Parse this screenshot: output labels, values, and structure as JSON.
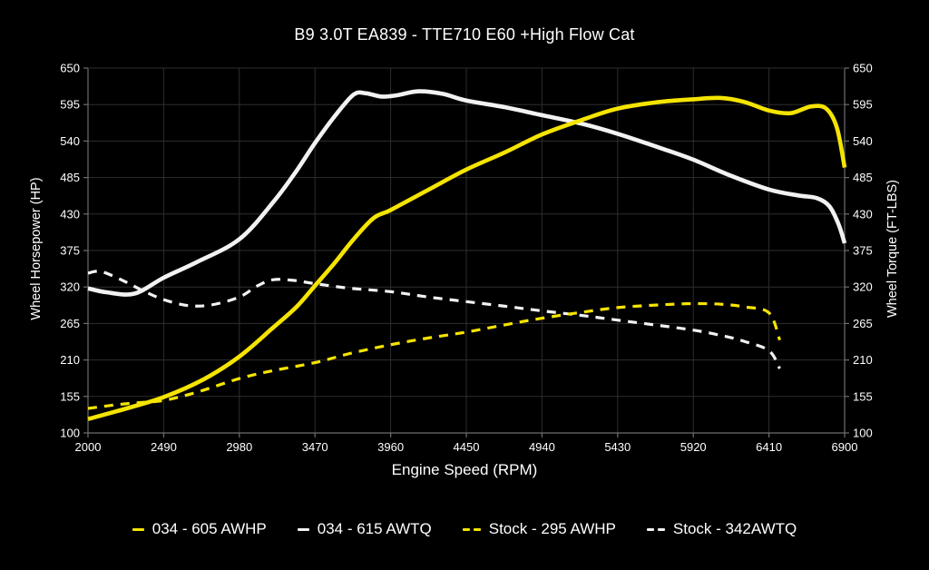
{
  "title": "B9 3.0T EA839 - TTE710 E60 +High Flow Cat",
  "colors": {
    "background": "#000000",
    "text": "#ffffff",
    "gridline": "#2e2e2e",
    "axis_line": "#6e6e6e",
    "yellow_accent": "#f5e400",
    "white_accent": "#f2f2f2"
  },
  "axes": {
    "x": {
      "label": "Engine Speed (RPM)",
      "min": 2000,
      "max": 6900,
      "ticks": [
        2000,
        2490,
        2980,
        3470,
        3960,
        4450,
        4940,
        5430,
        5920,
        6410,
        6900
      ]
    },
    "y_left": {
      "label": "Wheel Horsepower (HP)",
      "min": 100,
      "max": 650,
      "ticks": [
        100,
        155,
        210,
        265,
        320,
        375,
        430,
        485,
        540,
        595,
        650
      ]
    },
    "y_right": {
      "label": "Wheel Torque (FT-LBS)",
      "min": 100,
      "max": 650,
      "ticks": [
        100,
        155,
        210,
        265,
        320,
        375,
        430,
        485,
        540,
        595,
        650
      ]
    }
  },
  "legend": [
    {
      "label": "034 - 605 AWHP",
      "color": "#f5e400",
      "style": "solid"
    },
    {
      "label": "034 - 615 AWTQ",
      "color": "#f2f2f2",
      "style": "solid"
    },
    {
      "label": "Stock - 295 AWHP",
      "color": "#f5e400",
      "style": "dashed"
    },
    {
      "label": "Stock - 342AWTQ",
      "color": "#f2f2f2",
      "style": "dashed"
    }
  ],
  "chart_data": {
    "type": "line",
    "title": "B9 3.0T EA839 - TTE710 E60 +High Flow Cat",
    "xlabel": "Engine Speed (RPM)",
    "ylabel_left": "Wheel Horsepower (HP)",
    "ylabel_right": "Wheel Torque (FT-LBS)",
    "xlim": [
      2000,
      6900
    ],
    "ylim": [
      100,
      650
    ],
    "grid": true,
    "legend_position": "bottom",
    "series": [
      {
        "name": "Stock - 342AWTQ",
        "color": "#f2f2f2",
        "dash": true,
        "width": 3.2,
        "points": [
          [
            2000,
            341
          ],
          [
            2090,
            343
          ],
          [
            2250,
            327
          ],
          [
            2350,
            315
          ],
          [
            2490,
            301
          ],
          [
            2650,
            292
          ],
          [
            2800,
            293
          ],
          [
            2980,
            305
          ],
          [
            3100,
            322
          ],
          [
            3200,
            331
          ],
          [
            3330,
            330
          ],
          [
            3470,
            325
          ],
          [
            3700,
            318
          ],
          [
            3960,
            313
          ],
          [
            4200,
            305
          ],
          [
            4450,
            298
          ],
          [
            4700,
            291
          ],
          [
            4940,
            284
          ],
          [
            5200,
            277
          ],
          [
            5430,
            270
          ],
          [
            5700,
            262
          ],
          [
            5920,
            255
          ],
          [
            6100,
            247
          ],
          [
            6250,
            238
          ],
          [
            6410,
            224
          ],
          [
            6480,
            197
          ]
        ]
      },
      {
        "name": "Stock - 295 AWHP",
        "color": "#f5e400",
        "dash": true,
        "width": 3.2,
        "points": [
          [
            2000,
            137
          ],
          [
            2200,
            143
          ],
          [
            2350,
            146
          ],
          [
            2490,
            149
          ],
          [
            2700,
            161
          ],
          [
            2980,
            182
          ],
          [
            3200,
            194
          ],
          [
            3470,
            206
          ],
          [
            3700,
            220
          ],
          [
            3960,
            233
          ],
          [
            4200,
            243
          ],
          [
            4450,
            252
          ],
          [
            4700,
            263
          ],
          [
            4940,
            273
          ],
          [
            5200,
            282
          ],
          [
            5430,
            289
          ],
          [
            5700,
            293
          ],
          [
            5920,
            295
          ],
          [
            6100,
            294
          ],
          [
            6250,
            290
          ],
          [
            6410,
            281
          ],
          [
            6480,
            240
          ]
        ]
      },
      {
        "name": "034 - 615 AWTQ",
        "color": "#f2f2f2",
        "dash": false,
        "width": 4.6,
        "points": [
          [
            2000,
            318
          ],
          [
            2120,
            312
          ],
          [
            2300,
            310
          ],
          [
            2490,
            334
          ],
          [
            2700,
            357
          ],
          [
            2980,
            392
          ],
          [
            3200,
            448
          ],
          [
            3350,
            495
          ],
          [
            3470,
            537
          ],
          [
            3600,
            578
          ],
          [
            3720,
            610
          ],
          [
            3800,
            612
          ],
          [
            3900,
            607
          ],
          [
            4000,
            609
          ],
          [
            4140,
            615
          ],
          [
            4300,
            611
          ],
          [
            4450,
            601
          ],
          [
            4700,
            591
          ],
          [
            4940,
            579
          ],
          [
            5200,
            566
          ],
          [
            5430,
            551
          ],
          [
            5700,
            530
          ],
          [
            5920,
            512
          ],
          [
            6150,
            489
          ],
          [
            6410,
            467
          ],
          [
            6600,
            458
          ],
          [
            6720,
            454
          ],
          [
            6800,
            442
          ],
          [
            6860,
            415
          ],
          [
            6900,
            386
          ]
        ]
      },
      {
        "name": "034 - 605 AWHP",
        "color": "#f5e400",
        "dash": false,
        "width": 4.6,
        "points": [
          [
            2000,
            121
          ],
          [
            2250,
            137
          ],
          [
            2490,
            154
          ],
          [
            2750,
            181
          ],
          [
            2980,
            215
          ],
          [
            3200,
            259
          ],
          [
            3350,
            290
          ],
          [
            3470,
            322
          ],
          [
            3600,
            357
          ],
          [
            3720,
            392
          ],
          [
            3850,
            424
          ],
          [
            3960,
            436
          ],
          [
            4200,
            466
          ],
          [
            4450,
            497
          ],
          [
            4700,
            523
          ],
          [
            4940,
            550
          ],
          [
            5200,
            572
          ],
          [
            5430,
            589
          ],
          [
            5700,
            599
          ],
          [
            5920,
            603
          ],
          [
            6100,
            605
          ],
          [
            6250,
            599
          ],
          [
            6410,
            586
          ],
          [
            6550,
            582
          ],
          [
            6680,
            592
          ],
          [
            6780,
            589
          ],
          [
            6850,
            560
          ],
          [
            6900,
            500
          ]
        ]
      }
    ]
  }
}
